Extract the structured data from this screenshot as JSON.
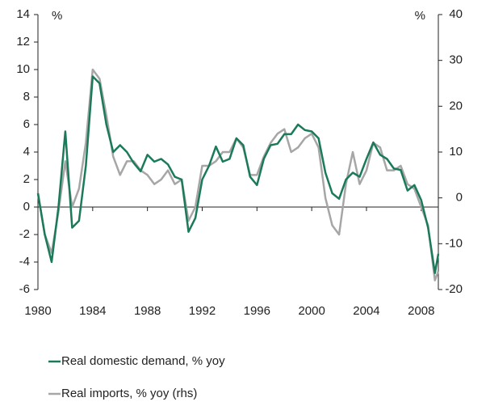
{
  "chart_data": {
    "type": "line",
    "ylabel": "%",
    "y2label": "%",
    "x": [
      1980,
      1980.5,
      1981,
      1981.5,
      1982,
      1982.5,
      1983,
      1983.5,
      1984,
      1984.5,
      1985,
      1985.5,
      1986,
      1986.5,
      1987,
      1987.5,
      1988,
      1988.5,
      1989,
      1989.5,
      1990,
      1990.5,
      1991,
      1991.5,
      1992,
      1992.5,
      1993,
      1993.5,
      1994,
      1994.5,
      1995,
      1995.5,
      1996,
      1996.5,
      1997,
      1997.5,
      1998,
      1998.5,
      1999,
      1999.5,
      2000,
      2000.5,
      2001,
      2001.5,
      2002,
      2002.5,
      2003,
      2003.5,
      2004,
      2004.5,
      2005,
      2005.5,
      2006,
      2006.5,
      2007,
      2007.5,
      2008,
      2008.5,
      2009,
      2009.25
    ],
    "series": [
      {
        "name": "Real domestic demand, % yoy",
        "color": "#1a7a5a",
        "values": [
          1.0,
          -2,
          -4,
          0,
          5.5,
          -1.5,
          -1,
          3,
          9.5,
          9,
          6,
          4,
          4.5,
          4,
          3.2,
          2.6,
          3.8,
          3.3,
          3.5,
          3.1,
          2.2,
          2.0,
          -1.8,
          -0.8,
          2.0,
          3.0,
          4.4,
          3.3,
          3.5,
          5.0,
          4.5,
          2.2,
          1.6,
          3.5,
          4.5,
          4.6,
          5.3,
          5.3,
          6.0,
          5.6,
          5.5,
          5.0,
          2.5,
          1.0,
          0.6,
          2.0,
          2.5,
          2.2,
          3.5,
          4.7,
          3.8,
          3.5,
          2.8,
          2.7,
          1.2,
          1.6,
          0.5,
          -1.5,
          -4.8,
          -3.4
        ]
      },
      {
        "name": "Real imports, % yoy (rhs)",
        "color": "#a6a6a6",
        "axis": "y2",
        "values": [
          1,
          -8,
          -12,
          -3,
          8,
          -2,
          2,
          12,
          28,
          26,
          18,
          9,
          5,
          8,
          8,
          6,
          5,
          3,
          4,
          6,
          3,
          4,
          -5,
          -2,
          7,
          7,
          8,
          10,
          10,
          13,
          11,
          5,
          5,
          9,
          12,
          14,
          15,
          10,
          11,
          13,
          14,
          11,
          0,
          -6,
          -8,
          3,
          10,
          3,
          6,
          12,
          11,
          6,
          6,
          7,
          3,
          2,
          -2,
          -6,
          -18,
          -16
        ]
      }
    ],
    "xlim": [
      1980,
      2009.25
    ],
    "xticks": [
      1980,
      1984,
      1988,
      1992,
      1996,
      2000,
      2004,
      2008
    ],
    "ylim": [
      -6,
      14
    ],
    "yticks": [
      -6,
      -4,
      -2,
      0,
      2,
      4,
      6,
      8,
      10,
      12,
      14
    ],
    "y2lim": [
      -20,
      40
    ],
    "y2ticks": [
      -20,
      -10,
      0,
      10,
      20,
      30,
      40
    ]
  }
}
